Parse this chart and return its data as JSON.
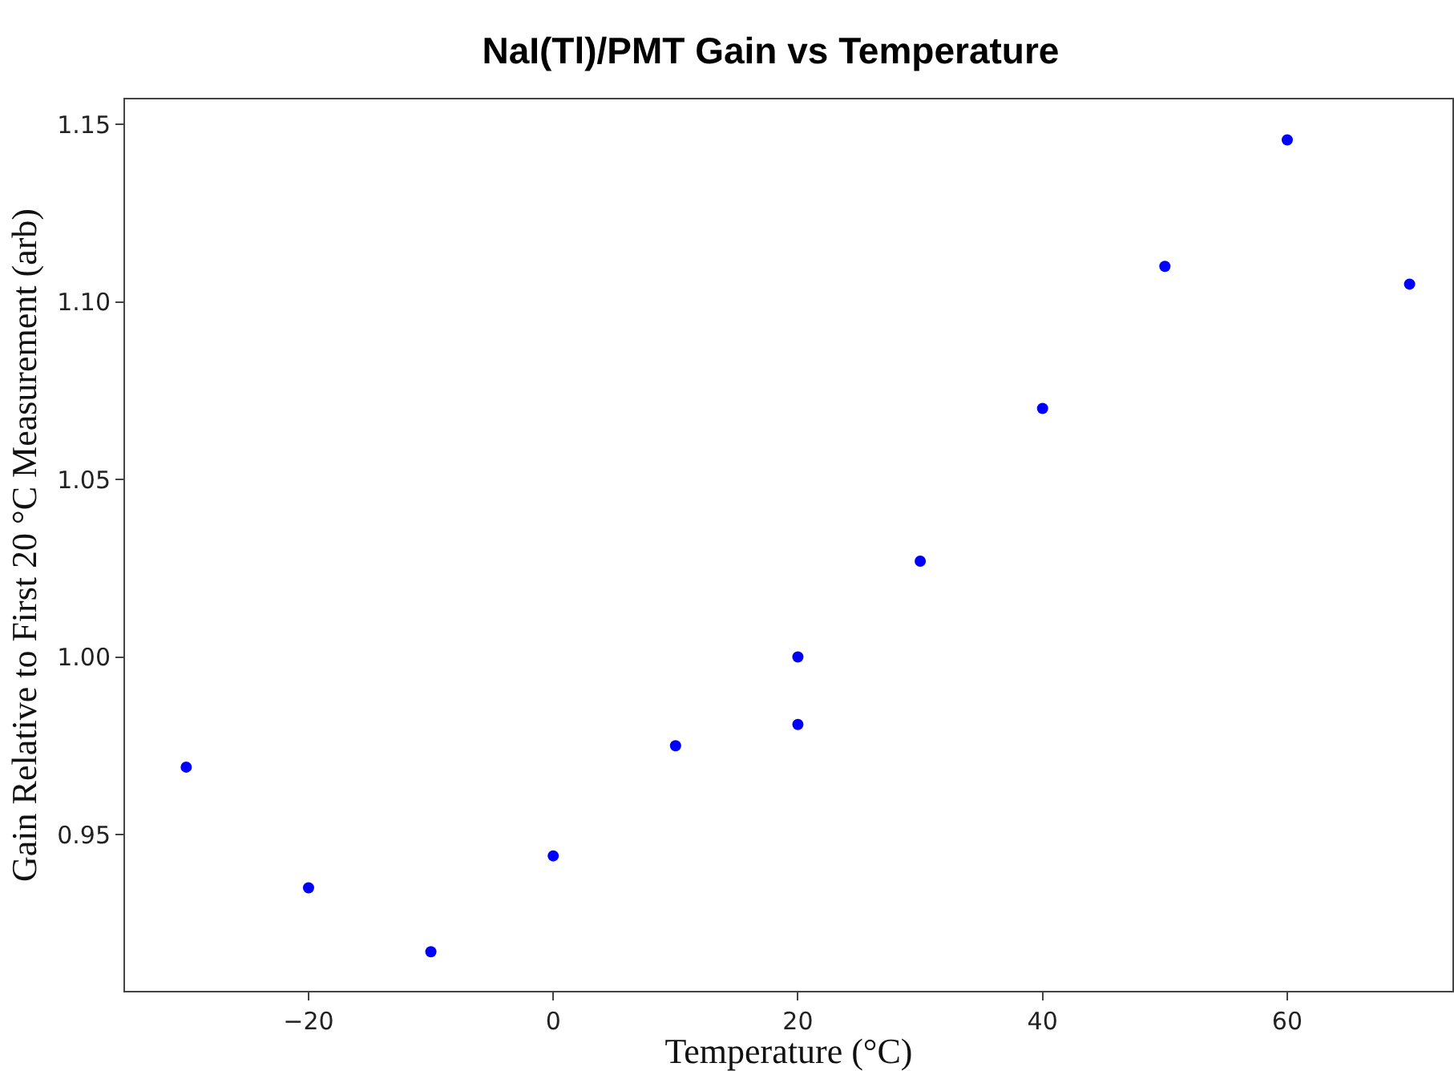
{
  "chart_data": {
    "type": "scatter",
    "title": "NaI(Tl)/PMT Gain vs Temperature",
    "xlabel": "Temperature (°C)",
    "ylabel": "Gain Relative to First 20 °C Measurement (arb)",
    "x": [
      -30,
      -20,
      -10,
      0,
      10,
      20,
      20,
      30,
      40,
      50,
      60,
      70
    ],
    "series": [
      {
        "color": "#0000ff",
        "values": [
          0.969,
          0.935,
          0.917,
          0.944,
          0.975,
          1.0,
          0.981,
          1.027,
          1.07,
          1.11,
          1.1456,
          1.105
        ]
      }
    ],
    "xlim": [
      -35,
      73.5
    ],
    "ylim": [
      0.906,
      1.157
    ],
    "xticks": [
      {
        "value": -20,
        "label": "−20"
      },
      0,
      20,
      40,
      60
    ],
    "yticks": [
      {
        "value": 0.95,
        "label": "0.95"
      },
      {
        "value": 1.0,
        "label": "1.00"
      },
      {
        "value": 1.05,
        "label": "1.05"
      },
      {
        "value": 1.1,
        "label": "1.10"
      },
      {
        "value": 1.15,
        "label": "1.15"
      }
    ],
    "marker": "circle"
  }
}
